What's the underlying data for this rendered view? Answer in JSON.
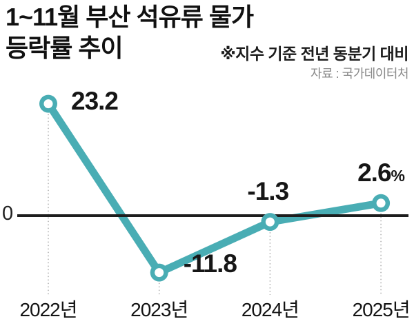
{
  "header": {
    "title_line1": "1~11월 부산 석유류 물가",
    "title_line2": "등락률 추이",
    "note": "※지수 기준 전년 동분기 대비",
    "source": "자료 : 국가데이터처"
  },
  "axis": {
    "zero_label": "0"
  },
  "chart_data": {
    "type": "line",
    "title": "1~11월 부산 석유류 물가 등락률 추이",
    "subtitle_note": "※지수 기준 전년 동분기 대비",
    "source": "자료 : 국가데이터처",
    "categories": [
      "2022년",
      "2023년",
      "2024년",
      "2025년"
    ],
    "values": [
      23.2,
      -11.8,
      -1.3,
      2.6
    ],
    "point_labels": [
      "23.2",
      "-11.8",
      "-1.3",
      "2.6"
    ],
    "unit_suffix": "%",
    "unit_on_last_point_only": true,
    "ylim": [
      -15,
      26
    ],
    "zero_line": true,
    "grid": false,
    "legend": "none",
    "line_color": "#49ADB4",
    "marker_style": "ring",
    "zero_line_color": "#1d1d1d",
    "dropline_color": "#ababab",
    "label_color": "#161616"
  }
}
